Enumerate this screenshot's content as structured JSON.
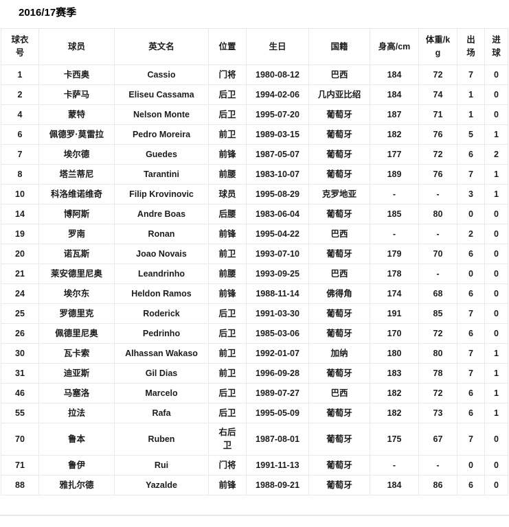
{
  "page": {
    "title": "2016/17赛季"
  },
  "table": {
    "columns": [
      {
        "key": "jersey-number",
        "label": "球衣号"
      },
      {
        "key": "player-name-cn",
        "label": "球员"
      },
      {
        "key": "player-name-en",
        "label": "英文名"
      },
      {
        "key": "position",
        "label": "位置"
      },
      {
        "key": "birthday",
        "label": "生日"
      },
      {
        "key": "nationality",
        "label": "国籍"
      },
      {
        "key": "height",
        "label": "身高/cm"
      },
      {
        "key": "weight",
        "label": "体重/kg"
      },
      {
        "key": "appearances",
        "label": "出场"
      },
      {
        "key": "goals",
        "label": "进球"
      }
    ],
    "rows": [
      [
        "1",
        "卡西奥",
        "Cassio",
        "门将",
        "1980-08-12",
        "巴西",
        "184",
        "72",
        "7",
        "0"
      ],
      [
        "2",
        "卡萨马",
        "Eliseu Cassama",
        "后卫",
        "1994-02-06",
        "几内亚比绍",
        "184",
        "74",
        "1",
        "0"
      ],
      [
        "4",
        "蒙特",
        "Nelson Monte",
        "后卫",
        "1995-07-20",
        "葡萄牙",
        "187",
        "71",
        "1",
        "0"
      ],
      [
        "6",
        "佩德罗·莫雷拉",
        "Pedro Moreira",
        "前卫",
        "1989-03-15",
        "葡萄牙",
        "182",
        "76",
        "5",
        "1"
      ],
      [
        "7",
        "埃尔德",
        "Guedes",
        "前锋",
        "1987-05-07",
        "葡萄牙",
        "177",
        "72",
        "6",
        "2"
      ],
      [
        "8",
        "塔兰蒂尼",
        "Tarantini",
        "前腰",
        "1983-10-07",
        "葡萄牙",
        "189",
        "76",
        "7",
        "1"
      ],
      [
        "10",
        "科洛维诺维奇",
        "Filip Krovinovic",
        "球员",
        "1995-08-29",
        "克罗地亚",
        "-",
        "-",
        "3",
        "1"
      ],
      [
        "14",
        "博阿斯",
        "Andre Boas",
        "后腰",
        "1983-06-04",
        "葡萄牙",
        "185",
        "80",
        "0",
        "0"
      ],
      [
        "19",
        "罗南",
        "Ronan",
        "前锋",
        "1995-04-22",
        "巴西",
        "-",
        "-",
        "2",
        "0"
      ],
      [
        "20",
        "诺瓦斯",
        "Joao Novais",
        "前卫",
        "1993-07-10",
        "葡萄牙",
        "179",
        "70",
        "6",
        "0"
      ],
      [
        "21",
        "莱安德里尼奥",
        "Leandrinho",
        "前腰",
        "1993-09-25",
        "巴西",
        "178",
        "-",
        "0",
        "0"
      ],
      [
        "24",
        "埃尔东",
        "Heldon Ramos",
        "前锋",
        "1988-11-14",
        "佛得角",
        "174",
        "68",
        "6",
        "0"
      ],
      [
        "25",
        "罗德里克",
        "Roderick",
        "后卫",
        "1991-03-30",
        "葡萄牙",
        "191",
        "85",
        "7",
        "0"
      ],
      [
        "26",
        "佩德里尼奥",
        "Pedrinho",
        "后卫",
        "1985-03-06",
        "葡萄牙",
        "170",
        "72",
        "6",
        "0"
      ],
      [
        "30",
        "瓦卡索",
        "Alhassan Wakaso",
        "前卫",
        "1992-01-07",
        "加纳",
        "180",
        "80",
        "7",
        "1"
      ],
      [
        "31",
        "迪亚斯",
        "Gil Dias",
        "前卫",
        "1996-09-28",
        "葡萄牙",
        "183",
        "78",
        "7",
        "1"
      ],
      [
        "46",
        "马塞洛",
        "Marcelo",
        "后卫",
        "1989-07-27",
        "巴西",
        "182",
        "72",
        "6",
        "1"
      ],
      [
        "55",
        "拉法",
        "Rafa",
        "后卫",
        "1995-05-09",
        "葡萄牙",
        "182",
        "73",
        "6",
        "1"
      ],
      [
        "70",
        "鲁本",
        "Ruben",
        "右后卫",
        "1987-08-01",
        "葡萄牙",
        "175",
        "67",
        "7",
        "0"
      ],
      [
        "71",
        "鲁伊",
        "Rui",
        "门将",
        "1991-11-13",
        "葡萄牙",
        "-",
        "-",
        "0",
        "0"
      ],
      [
        "88",
        "雅扎尔德",
        "Yazalde",
        "前锋",
        "1988-09-21",
        "葡萄牙",
        "184",
        "86",
        "6",
        "0"
      ]
    ]
  }
}
